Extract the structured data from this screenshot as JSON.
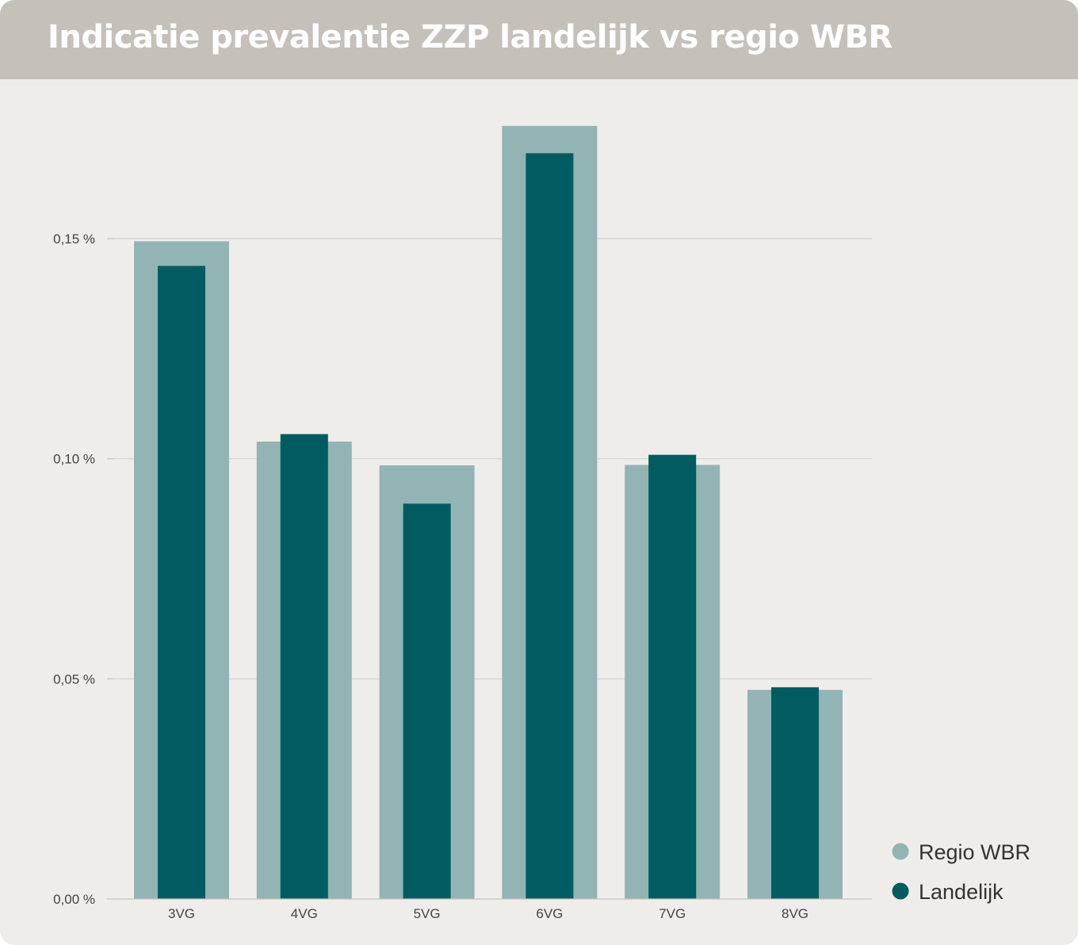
{
  "header": {
    "title": "Indicatie prevalentie ZZP landelijk vs regio WBR"
  },
  "chart_data": {
    "type": "bar",
    "title": "Indicatie prevalentie ZZP landelijk vs regio WBR",
    "xlabel": "",
    "ylabel": "",
    "categories": [
      "3VG",
      "4VG",
      "5VG",
      "6VG",
      "7VG",
      "8VG"
    ],
    "series": [
      {
        "name": "Regio WBR",
        "color": "#92b4b5",
        "values": [
          0.1494,
          0.1039,
          0.0985,
          0.1756,
          0.0986,
          0.0475
        ]
      },
      {
        "name": "Landelijk",
        "color": "#005c61",
        "values": [
          0.1438,
          0.1056,
          0.0898,
          0.1694,
          0.1009,
          0.0481
        ]
      }
    ],
    "ylim": [
      0,
      0.18
    ],
    "yticks": [
      0,
      0.05,
      0.1,
      0.15
    ],
    "ytick_labels": [
      "0,00 %",
      "0,05 %",
      "0,10 %",
      "0,15 %"
    ],
    "grid": true,
    "legend_position": "bottom-right",
    "overlapping_bars": true
  }
}
